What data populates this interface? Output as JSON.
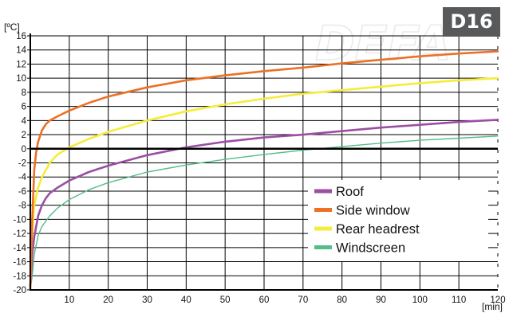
{
  "badge": {
    "label": "D16"
  },
  "watermark": {
    "text": "DEFA"
  },
  "colors": {
    "roof": "#9b4ea3",
    "side_window": "#ec7124",
    "rear_headrest": "#f5ec3c",
    "windscreen": "#54bd8b"
  },
  "chart_data": {
    "type": "line",
    "y_unit": "[ºC]",
    "x_unit": "[min]",
    "xlim": [
      0,
      120
    ],
    "ylim": [
      -20,
      16
    ],
    "x_ticks": [
      10,
      20,
      30,
      40,
      50,
      60,
      70,
      80,
      90,
      100,
      110,
      120
    ],
    "y_ticks": [
      16,
      14,
      12,
      10,
      8,
      6,
      4,
      2,
      0,
      -2,
      -4,
      -6,
      -8,
      -10,
      -12,
      -14,
      -16,
      -18,
      -20
    ],
    "grid": true,
    "legend_position": "lower-right",
    "series": [
      {
        "name": "Roof",
        "color": "#9b4ea3",
        "x": [
          0,
          0.5,
          1,
          2,
          3,
          4,
          5,
          7,
          10,
          15,
          20,
          30,
          40,
          50,
          60,
          70,
          80,
          90,
          100,
          110,
          120
        ],
        "y": [
          -19.5,
          -15,
          -12.5,
          -9.5,
          -8,
          -7,
          -6.3,
          -5.5,
          -4.5,
          -3.3,
          -2.4,
          -0.9,
          0.2,
          1,
          1.6,
          2,
          2.5,
          3,
          3.4,
          3.8,
          4.1
        ]
      },
      {
        "name": "Side window",
        "color": "#ec7124",
        "x": [
          0,
          0.5,
          1,
          1.5,
          2,
          3,
          4,
          5,
          7,
          10,
          15,
          20,
          30,
          40,
          50,
          60,
          70,
          80,
          90,
          100,
          110,
          120
        ],
        "y": [
          -20,
          -10,
          -3,
          -0.5,
          1,
          2.6,
          3.5,
          4,
          4.6,
          5.4,
          6.5,
          7.4,
          8.7,
          9.7,
          10.4,
          11,
          11.5,
          12.1,
          12.6,
          13.1,
          13.5,
          13.8
        ]
      },
      {
        "name": "Rear headrest",
        "color": "#f5ec3c",
        "x": [
          0,
          0.5,
          1,
          2,
          3,
          5,
          7,
          10,
          15,
          20,
          30,
          40,
          50,
          60,
          70,
          80,
          90,
          100,
          110,
          120
        ],
        "y": [
          -19.5,
          -12,
          -8,
          -5.5,
          -4,
          -2,
          -0.8,
          0.2,
          1.4,
          2.4,
          4,
          5.3,
          6.3,
          7.1,
          7.8,
          8.3,
          8.8,
          9.3,
          9.7,
          10
        ]
      },
      {
        "name": "Windscreen",
        "color": "#54bd8b",
        "x": [
          0,
          0.5,
          1,
          2,
          3,
          5,
          7,
          10,
          15,
          20,
          30,
          40,
          50,
          60,
          70,
          80,
          90,
          100,
          110,
          120
        ],
        "y": [
          -20,
          -18,
          -15,
          -12.3,
          -11,
          -9.5,
          -8.4,
          -7.2,
          -5.8,
          -4.8,
          -3.3,
          -2.3,
          -1.5,
          -0.8,
          -0.2,
          0.3,
          0.8,
          1.2,
          1.5,
          1.8
        ]
      }
    ]
  }
}
